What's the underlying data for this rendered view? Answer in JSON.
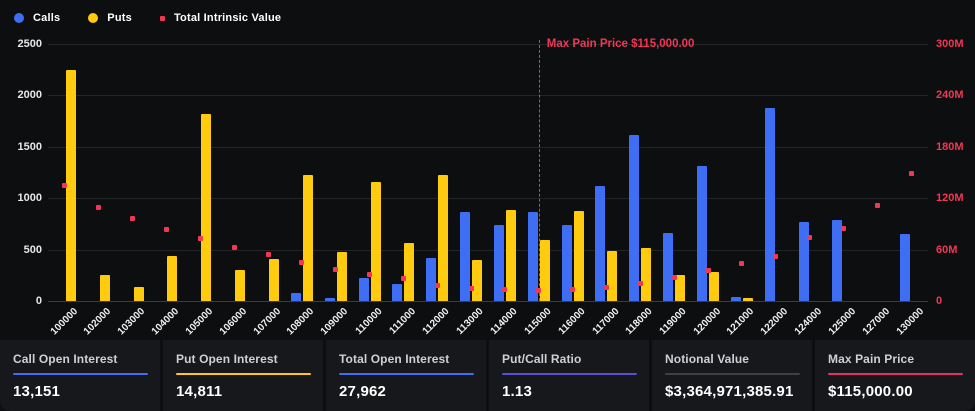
{
  "legend": {
    "items": [
      {
        "label": "Calls",
        "color": "#3e6ef3",
        "shape": "circle",
        "icon": "calls-legend-dot"
      },
      {
        "label": "Puts",
        "color": "#ffcb0f",
        "shape": "circle",
        "icon": "puts-legend-dot"
      },
      {
        "label": "Total Intrinsic Value",
        "color": "#f23655",
        "shape": "square",
        "icon": "intrinsic-legend-square"
      }
    ]
  },
  "chart_data": {
    "type": "bar",
    "subtype": "grouped-bars-with-scatter-overlay",
    "categories": [
      "100000",
      "102000",
      "103000",
      "104000",
      "105000",
      "106000",
      "107000",
      "108000",
      "109000",
      "110000",
      "111000",
      "112000",
      "113000",
      "114000",
      "115000",
      "116000",
      "117000",
      "118000",
      "119000",
      "120000",
      "121000",
      "122000",
      "124000",
      "125000",
      "127000",
      "130000"
    ],
    "series": [
      {
        "name": "Calls",
        "type": "bar",
        "axis": "left",
        "color": "#3e6ef3",
        "values": [
          0,
          0,
          0,
          0,
          0,
          0,
          0,
          75,
          30,
          220,
          170,
          420,
          870,
          740,
          870,
          740,
          1120,
          1610,
          660,
          1310,
          35,
          1880,
          770,
          790,
          0,
          650
        ]
      },
      {
        "name": "Puts",
        "type": "bar",
        "axis": "left",
        "color": "#ffcb0f",
        "values": [
          2250,
          250,
          140,
          440,
          1820,
          300,
          410,
          1230,
          480,
          1160,
          560,
          1230,
          400,
          890,
          590,
          880,
          490,
          520,
          250,
          280,
          25,
          0,
          0,
          0,
          0,
          0
        ]
      },
      {
        "name": "Total Intrinsic Value",
        "type": "scatter",
        "axis": "right",
        "color": "#f23655",
        "values_millions": [
          135,
          109,
          96,
          84,
          73,
          63,
          54,
          45,
          37,
          31,
          26,
          18,
          15,
          13,
          12,
          14,
          16,
          20,
          27,
          36,
          44,
          52,
          74,
          85,
          111,
          149
        ]
      }
    ],
    "left_axis": {
      "ticks": [
        0,
        500,
        1000,
        1500,
        2000,
        2500
      ],
      "max": 2500,
      "color": "#e8e8ea"
    },
    "right_axis": {
      "tick_labels": [
        "0",
        "60M",
        "120M",
        "180M",
        "240M",
        "300M"
      ],
      "tick_values_millions": [
        0,
        60,
        120,
        180,
        240,
        300
      ],
      "max_millions": 300,
      "color": "#f23655"
    },
    "annotation": {
      "label": "Max Pain Price $115,000.00",
      "category": "115000",
      "color": "#f23655"
    },
    "grid": true,
    "legend_position": "top-left",
    "title": ""
  },
  "stats": {
    "cards": [
      {
        "label": "Call Open Interest",
        "value": "13,151",
        "accent": "#3e6ef3"
      },
      {
        "label": "Put Open Interest",
        "value": "14,811",
        "accent": "#ffcb0f"
      },
      {
        "label": "Total Open Interest",
        "value": "27,962",
        "accent": "#3e6ef3"
      },
      {
        "label": "Put/Call Ratio",
        "value": "1.13",
        "accent": "#5850d2"
      },
      {
        "label": "Notional Value",
        "value": "$3,364,971,385.91",
        "accent": "#3f4044"
      },
      {
        "label": "Max Pain Price",
        "value": "$115,000.00",
        "accent": "#e0355c"
      }
    ]
  }
}
